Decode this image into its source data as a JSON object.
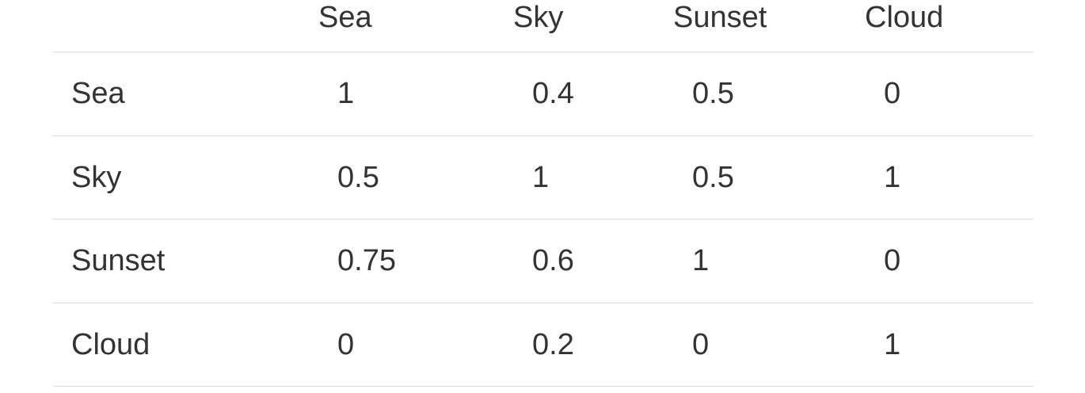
{
  "table": {
    "columns": [
      "Sea",
      "Sky",
      "Sunset",
      "Cloud"
    ],
    "rows": [
      {
        "label": "Sea",
        "values": [
          "1",
          "0.4",
          "0.5",
          "0"
        ]
      },
      {
        "label": "Sky",
        "values": [
          "0.5",
          "1",
          "0.5",
          "1"
        ]
      },
      {
        "label": "Sunset",
        "values": [
          "0.75",
          "0.6",
          "1",
          "0"
        ]
      },
      {
        "label": "Cloud",
        "values": [
          "0",
          "0.2",
          "0",
          "1"
        ]
      }
    ]
  }
}
